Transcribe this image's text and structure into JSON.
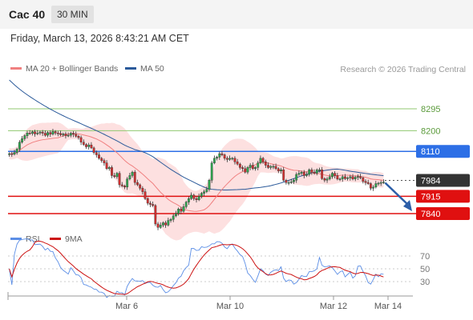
{
  "header": {
    "title": "Cac 40",
    "timeframe": "30 MIN"
  },
  "datetime": "Friday, March 13, 2026 8:43:21 AM CET",
  "legend": {
    "ma": "MA 20 + Bollinger Bands",
    "ma50": "MA 50",
    "rsi": "RSI",
    "rsi_ma": "9MA"
  },
  "credit": "Research © 2026 Trading Central",
  "colors": {
    "ma20": "#f08080",
    "ma50": "#2b5a9a",
    "band": "#fde0e0",
    "resistance": "#90c870",
    "pivot": "#2d6fe6",
    "support": "#e01010",
    "price": "#333333",
    "arrow": "#2c5ea8",
    "up": "#2fa84f",
    "down": "#d43030",
    "rsi": "#5b8ee6",
    "rsi_ma": "#cc1111"
  },
  "chart_data": [
    {
      "type": "candlestick",
      "x_ticks": [
        "Mar 6",
        "Mar 10",
        "Mar 12",
        "Mar 14"
      ],
      "ylim": [
        7760,
        8420
      ],
      "levels": [
        {
          "label": "8295",
          "value": 8295,
          "kind": "resistance"
        },
        {
          "label": "8200",
          "value": 8200,
          "kind": "resistance"
        },
        {
          "label": "8110",
          "value": 8110,
          "kind": "pivot"
        },
        {
          "label": "7984",
          "value": 7984,
          "kind": "price"
        },
        {
          "label": "7915",
          "value": 7915,
          "kind": "support"
        },
        {
          "label": "7840",
          "value": 7840,
          "kind": "support"
        }
      ],
      "close_series": [
        8100,
        8098,
        8105,
        8120,
        8150,
        8165,
        8178,
        8190,
        8188,
        8195,
        8186,
        8190,
        8194,
        8189,
        8180,
        8192,
        8185,
        8196,
        8190,
        8188,
        8182,
        8186,
        8178,
        8180,
        8189,
        8184,
        8176,
        8170,
        8150,
        8140,
        8130,
        8138,
        8125,
        8105,
        8095,
        8080,
        8070,
        8060,
        8035,
        8040,
        8005,
        8000,
        8015,
        7965,
        7960,
        7955,
        7990,
        8005,
        8020,
        7975,
        7965,
        7950,
        7935,
        7905,
        7885,
        7880,
        7875,
        7795,
        7780,
        7790,
        7800,
        7790,
        7810,
        7815,
        7830,
        7840,
        7860,
        7850,
        7870,
        7890,
        7905,
        7920,
        7905,
        7900,
        7915,
        7928,
        7935,
        7945,
        7985,
        8060,
        8080,
        8085,
        8100,
        8095,
        8080,
        8075,
        8080,
        8080,
        8065,
        8055,
        8040,
        8035,
        8020,
        8040,
        8050,
        8035,
        8040,
        8060,
        8080,
        8065,
        8050,
        8040,
        8045,
        8045,
        8035,
        8025,
        8030,
        7985,
        7975,
        7975,
        7978,
        7985,
        8010,
        8015,
        8020,
        8005,
        8010,
        8030,
        8020,
        8015,
        8030,
        8030,
        7992,
        7985,
        7990,
        8000,
        8015,
        8005,
        7990,
        7990,
        8000,
        7992,
        7995,
        8000,
        7990,
        7998,
        8001,
        7995,
        7980,
        7975,
        7970,
        7950,
        7955,
        7970,
        7972,
        7975,
        7977
      ],
      "ma50_last": 7995
    },
    {
      "type": "line",
      "title": "RSI",
      "ylim": [
        15,
        80
      ],
      "y_ticks": [
        "70",
        "50",
        "30"
      ],
      "series": [
        {
          "name": "RSI"
        },
        {
          "name": "9MA"
        }
      ]
    }
  ]
}
